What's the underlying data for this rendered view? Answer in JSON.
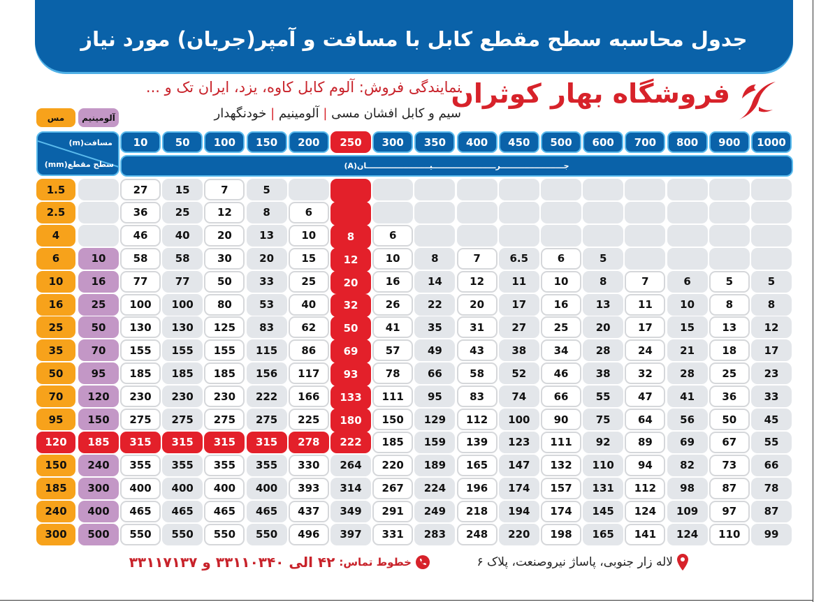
{
  "title": "جدول محاسبه سطح مقطع کابل با مسافت و آمپر(جریان) مورد نیاز",
  "brand": {
    "name": "فروشگاه بهار کوثران",
    "logo_icon": "stylized-leaf-logo-icon",
    "color": "#d7222a"
  },
  "subtitle_red": "نمایندگی فروش: آلوم کابل کاوه، یزد، ایران تک و ...",
  "subtitle_products": [
    "سیم و کابل افشان مسی",
    "آلومینیم",
    "خودنگهدار"
  ],
  "legend": {
    "copper": "مس",
    "aluminum": "آلومینیم",
    "copper_color": "#f7a21b",
    "aluminum_color": "#c397c6"
  },
  "header": {
    "distance_label": "مسافت(m)",
    "section_label": "سطح مقطع(mm)",
    "current_label": "جــــــــــــــــــــــــرــــــــــــــــــــــــیــــــــــــــــــــــــان(A)"
  },
  "distances": [
    "10",
    "50",
    "100",
    "150",
    "200",
    "250",
    "300",
    "350",
    "400",
    "450",
    "500",
    "600",
    "700",
    "800",
    "900",
    "1000"
  ],
  "highlight": {
    "distance": "250",
    "copper": "120",
    "color": "#e3202a"
  },
  "rows": [
    {
      "cu": "1.5",
      "al": "",
      "v": [
        "27",
        "15",
        "7",
        "5",
        "",
        "",
        "",
        "",
        "",
        "",
        "",
        "",
        "",
        "",
        "",
        ""
      ]
    },
    {
      "cu": "2.5",
      "al": "",
      "v": [
        "36",
        "25",
        "12",
        "8",
        "6",
        "",
        "",
        "",
        "",
        "",
        "",
        "",
        "",
        "",
        "",
        ""
      ]
    },
    {
      "cu": "4",
      "al": "",
      "v": [
        "46",
        "40",
        "20",
        "13",
        "10",
        "8",
        "6",
        "",
        "",
        "",
        "",
        "",
        "",
        "",
        "",
        ""
      ]
    },
    {
      "cu": "6",
      "al": "10",
      "v": [
        "58",
        "58",
        "30",
        "20",
        "15",
        "12",
        "10",
        "8",
        "7",
        "6.5",
        "6",
        "5",
        "",
        "",
        "",
        ""
      ]
    },
    {
      "cu": "10",
      "al": "16",
      "v": [
        "77",
        "77",
        "50",
        "33",
        "25",
        "20",
        "16",
        "14",
        "12",
        "11",
        "10",
        "8",
        "7",
        "6",
        "5",
        "5"
      ]
    },
    {
      "cu": "16",
      "al": "25",
      "v": [
        "100",
        "100",
        "80",
        "53",
        "40",
        "32",
        "26",
        "22",
        "20",
        "17",
        "16",
        "13",
        "11",
        "10",
        "8",
        "8"
      ]
    },
    {
      "cu": "25",
      "al": "50",
      "v": [
        "130",
        "130",
        "125",
        "83",
        "62",
        "50",
        "41",
        "35",
        "31",
        "27",
        "25",
        "20",
        "17",
        "15",
        "13",
        "12"
      ]
    },
    {
      "cu": "35",
      "al": "70",
      "v": [
        "155",
        "155",
        "155",
        "115",
        "86",
        "69",
        "57",
        "49",
        "43",
        "38",
        "34",
        "28",
        "24",
        "21",
        "18",
        "17"
      ]
    },
    {
      "cu": "50",
      "al": "95",
      "v": [
        "185",
        "185",
        "185",
        "156",
        "117",
        "93",
        "78",
        "66",
        "58",
        "52",
        "46",
        "38",
        "32",
        "28",
        "25",
        "23"
      ]
    },
    {
      "cu": "70",
      "al": "120",
      "v": [
        "230",
        "230",
        "230",
        "222",
        "166",
        "133",
        "111",
        "95",
        "83",
        "74",
        "66",
        "55",
        "47",
        "41",
        "36",
        "33"
      ]
    },
    {
      "cu": "95",
      "al": "150",
      "v": [
        "275",
        "275",
        "275",
        "275",
        "225",
        "180",
        "150",
        "129",
        "112",
        "100",
        "90",
        "75",
        "64",
        "56",
        "50",
        "45"
      ]
    },
    {
      "cu": "120",
      "al": "185",
      "v": [
        "315",
        "315",
        "315",
        "315",
        "278",
        "222",
        "185",
        "159",
        "139",
        "123",
        "111",
        "92",
        "89",
        "69",
        "67",
        "55"
      ]
    },
    {
      "cu": "150",
      "al": "240",
      "v": [
        "355",
        "355",
        "355",
        "355",
        "330",
        "264",
        "220",
        "189",
        "165",
        "147",
        "132",
        "110",
        "94",
        "82",
        "73",
        "66"
      ]
    },
    {
      "cu": "185",
      "al": "300",
      "v": [
        "400",
        "400",
        "400",
        "400",
        "393",
        "314",
        "267",
        "224",
        "196",
        "174",
        "157",
        "131",
        "112",
        "98",
        "87",
        "78"
      ]
    },
    {
      "cu": "240",
      "al": "400",
      "v": [
        "465",
        "465",
        "465",
        "465",
        "437",
        "349",
        "291",
        "249",
        "218",
        "194",
        "174",
        "145",
        "124",
        "109",
        "97",
        "87"
      ]
    },
    {
      "cu": "300",
      "al": "500",
      "v": [
        "550",
        "550",
        "550",
        "550",
        "496",
        "397",
        "331",
        "283",
        "248",
        "220",
        "198",
        "165",
        "141",
        "124",
        "110",
        "99"
      ]
    }
  ],
  "footer": {
    "address": "لاله زار جنوبی، پاساژ نیروصنعت، پلاک ۶",
    "address_icon": "location-pin-icon",
    "phone_label": "خطوط تماس:",
    "phone_text": "۴۲ الی ۳۳۱۱۰۳۴۰ و ۳۳۱۱۷۱۳۷",
    "phone_icon": "phone-icon"
  }
}
